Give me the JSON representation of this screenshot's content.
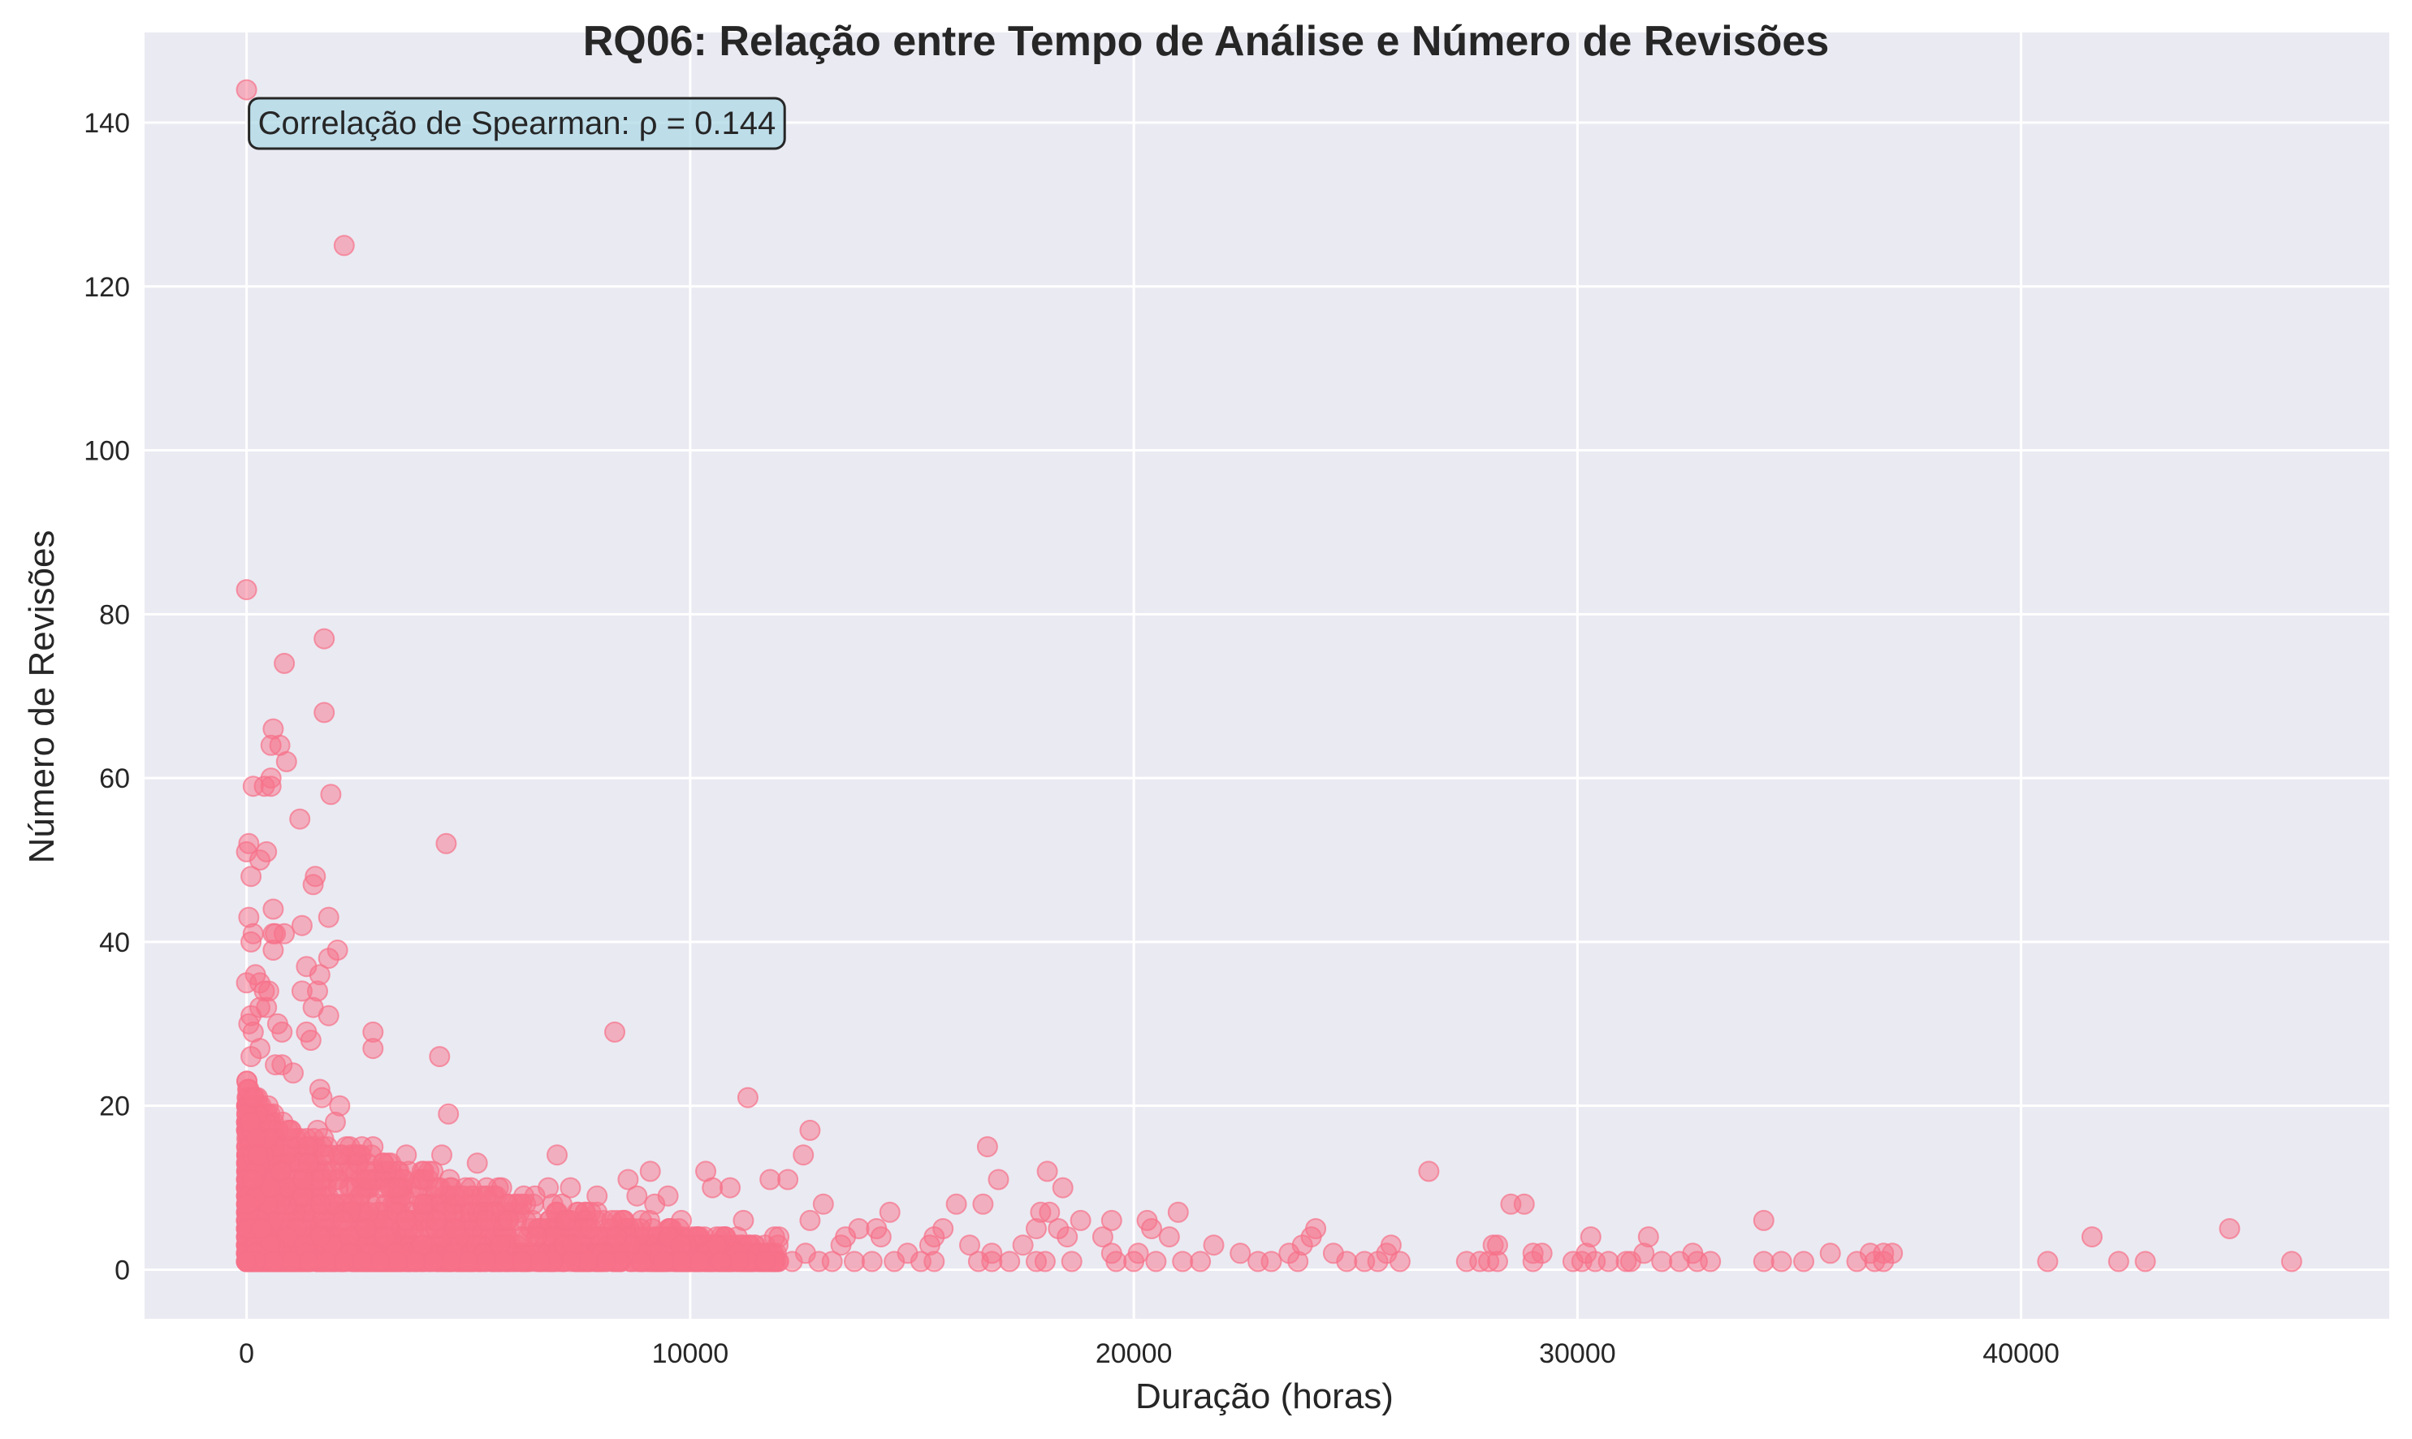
{
  "chart_data": {
    "type": "scatter",
    "title": "RQ06: Relação entre Tempo de Análise e Número de Revisões",
    "xlabel": "Duração (horas)",
    "ylabel": "Número de Revisões",
    "xlim": [
      -2300,
      48300
    ],
    "ylim": [
      -6,
      151
    ],
    "xticks": [
      0,
      10000,
      20000,
      30000,
      40000
    ],
    "xtick_labels": [
      "0",
      "10000",
      "20000",
      "30000",
      "40000"
    ],
    "yticks": [
      0,
      20,
      40,
      60,
      80,
      100,
      120,
      140
    ],
    "ytick_labels": [
      "0",
      "20",
      "40",
      "60",
      "80",
      "100",
      "120",
      "140"
    ],
    "grid": true,
    "annotation": "Correlação de Spearman: ρ = 0.144",
    "colors": {
      "marker": "#f77189",
      "plot_bg": "#eaeaf2",
      "grid": "#ffffff",
      "annotation_bg": "#add8e6",
      "annotation_border": "#262626"
    },
    "points": [
      [
        0,
        144
      ],
      [
        2200,
        125
      ],
      [
        0,
        83
      ],
      [
        1750,
        77
      ],
      [
        850,
        74
      ],
      [
        1750,
        68
      ],
      [
        600,
        66
      ],
      [
        750,
        64
      ],
      [
        550,
        64
      ],
      [
        900,
        62
      ],
      [
        550,
        60
      ],
      [
        150,
        59
      ],
      [
        400,
        59
      ],
      [
        550,
        59
      ],
      [
        1900,
        58
      ],
      [
        1200,
        55
      ],
      [
        4500,
        52
      ],
      [
        50,
        52
      ],
      [
        450,
        51
      ],
      [
        0,
        51
      ],
      [
        300,
        50
      ],
      [
        100,
        48
      ],
      [
        1550,
        48
      ],
      [
        1500,
        47
      ],
      [
        600,
        44
      ],
      [
        50,
        43
      ],
      [
        1850,
        43
      ],
      [
        1250,
        42
      ],
      [
        150,
        41
      ],
      [
        600,
        41
      ],
      [
        850,
        41
      ],
      [
        650,
        41
      ],
      [
        100,
        40
      ],
      [
        600,
        39
      ],
      [
        2050,
        39
      ],
      [
        1850,
        38
      ],
      [
        1350,
        37
      ],
      [
        1650,
        36
      ],
      [
        200,
        36
      ],
      [
        0,
        35
      ],
      [
        300,
        35
      ],
      [
        400,
        34
      ],
      [
        500,
        34
      ],
      [
        1250,
        34
      ],
      [
        1600,
        34
      ],
      [
        300,
        32
      ],
      [
        450,
        32
      ],
      [
        1500,
        32
      ],
      [
        100,
        31
      ],
      [
        1850,
        31
      ],
      [
        700,
        30
      ],
      [
        50,
        30
      ],
      [
        150,
        29
      ],
      [
        800,
        29
      ],
      [
        1350,
        29
      ],
      [
        2850,
        29
      ],
      [
        8300,
        29
      ],
      [
        1450,
        28
      ],
      [
        300,
        27
      ],
      [
        2850,
        27
      ],
      [
        4350,
        26
      ],
      [
        100,
        26
      ],
      [
        650,
        25
      ],
      [
        800,
        25
      ],
      [
        1050,
        24
      ],
      [
        1650,
        22
      ],
      [
        150,
        21
      ],
      [
        1700,
        21
      ],
      [
        11300,
        21
      ],
      [
        2100,
        20
      ],
      [
        4550,
        19
      ],
      [
        2000,
        18
      ],
      [
        12700,
        17
      ],
      [
        1600,
        17
      ],
      [
        2850,
        15
      ],
      [
        16700,
        15
      ],
      [
        2600,
        15
      ],
      [
        4400,
        14
      ],
      [
        7000,
        14
      ],
      [
        3600,
        14
      ],
      [
        12550,
        14
      ],
      [
        3250,
        13
      ],
      [
        5200,
        13
      ],
      [
        1400,
        13
      ],
      [
        9100,
        12
      ],
      [
        10350,
        12
      ],
      [
        26650,
        12
      ],
      [
        18050,
        12
      ],
      [
        4200,
        12
      ],
      [
        2700,
        12
      ],
      [
        2700,
        11
      ],
      [
        8600,
        11
      ],
      [
        11800,
        11
      ],
      [
        12200,
        11
      ],
      [
        16950,
        11
      ],
      [
        3400,
        10
      ],
      [
        5750,
        10
      ],
      [
        6800,
        10
      ],
      [
        7300,
        10
      ],
      [
        10500,
        10
      ],
      [
        10900,
        10
      ],
      [
        18400,
        10
      ],
      [
        6500,
        9
      ],
      [
        7900,
        9
      ],
      [
        8800,
        9
      ],
      [
        4700,
        9
      ],
      [
        4900,
        9
      ],
      [
        9500,
        9
      ],
      [
        6200,
        8
      ],
      [
        9200,
        8
      ],
      [
        13000,
        8
      ],
      [
        16000,
        8
      ],
      [
        16600,
        8
      ],
      [
        28500,
        8
      ],
      [
        28800,
        8
      ],
      [
        14500,
        7
      ],
      [
        18100,
        7
      ],
      [
        21000,
        7
      ],
      [
        17900,
        7
      ],
      [
        19500,
        6
      ],
      [
        20300,
        6
      ],
      [
        34200,
        6
      ],
      [
        11200,
        6
      ],
      [
        12700,
        6
      ],
      [
        18800,
        6
      ],
      [
        9800,
        6
      ],
      [
        3600,
        6
      ],
      [
        5400,
        6
      ],
      [
        7200,
        6
      ],
      [
        44700,
        5
      ],
      [
        24100,
        5
      ],
      [
        20400,
        5
      ],
      [
        15700,
        5
      ],
      [
        14200,
        5
      ],
      [
        17800,
        5
      ],
      [
        18300,
        5
      ],
      [
        13800,
        5
      ],
      [
        41600,
        4
      ],
      [
        31600,
        4
      ],
      [
        30300,
        4
      ],
      [
        24000,
        4
      ],
      [
        20800,
        4
      ],
      [
        19300,
        4
      ],
      [
        15500,
        4
      ],
      [
        13500,
        4
      ],
      [
        11900,
        4
      ],
      [
        18500,
        4
      ],
      [
        14300,
        4
      ],
      [
        12000,
        4
      ],
      [
        16300,
        3
      ],
      [
        17500,
        3
      ],
      [
        21800,
        3
      ],
      [
        23800,
        3
      ],
      [
        25800,
        3
      ],
      [
        28100,
        3
      ],
      [
        28200,
        3
      ],
      [
        15400,
        3
      ],
      [
        10600,
        3
      ],
      [
        13400,
        3
      ],
      [
        29000,
        2
      ],
      [
        29200,
        2
      ],
      [
        30200,
        2
      ],
      [
        31500,
        2
      ],
      [
        32600,
        2
      ],
      [
        35700,
        2
      ],
      [
        36600,
        2
      ],
      [
        36900,
        2
      ],
      [
        37100,
        2
      ],
      [
        22400,
        2
      ],
      [
        23500,
        2
      ],
      [
        24500,
        2
      ],
      [
        25700,
        2
      ],
      [
        19500,
        2
      ],
      [
        20100,
        2
      ],
      [
        16800,
        2
      ],
      [
        14900,
        2
      ],
      [
        12600,
        2
      ],
      [
        27500,
        1
      ],
      [
        27800,
        1
      ],
      [
        28000,
        1
      ],
      [
        28200,
        1
      ],
      [
        29000,
        1
      ],
      [
        29900,
        1
      ],
      [
        30100,
        1
      ],
      [
        30400,
        1
      ],
      [
        30700,
        1
      ],
      [
        31100,
        1
      ],
      [
        31200,
        1
      ],
      [
        31900,
        1
      ],
      [
        32300,
        1
      ],
      [
        32700,
        1
      ],
      [
        33000,
        1
      ],
      [
        34200,
        1
      ],
      [
        34600,
        1
      ],
      [
        35100,
        1
      ],
      [
        36300,
        1
      ],
      [
        36700,
        1
      ],
      [
        36900,
        1
      ],
      [
        40600,
        1
      ],
      [
        42200,
        1
      ],
      [
        42800,
        1
      ],
      [
        46100,
        1
      ],
      [
        22800,
        1
      ],
      [
        23100,
        1
      ],
      [
        23700,
        1
      ],
      [
        24800,
        1
      ],
      [
        25200,
        1
      ],
      [
        25500,
        1
      ],
      [
        26000,
        1
      ],
      [
        21100,
        1
      ],
      [
        21500,
        1
      ],
      [
        20500,
        1
      ],
      [
        20000,
        1
      ],
      [
        19600,
        1
      ],
      [
        18600,
        1
      ],
      [
        18000,
        1
      ],
      [
        17800,
        1
      ],
      [
        17200,
        1
      ],
      [
        16500,
        1
      ],
      [
        16800,
        1
      ],
      [
        15200,
        1
      ],
      [
        15500,
        1
      ],
      [
        14600,
        1
      ],
      [
        14100,
        1
      ],
      [
        13700,
        1
      ],
      [
        13200,
        1
      ],
      [
        12900,
        1
      ],
      [
        12300,
        1
      ],
      [
        11700,
        1
      ],
      [
        11100,
        1
      ],
      [
        10700,
        1
      ],
      [
        10200,
        1
      ],
      [
        9800,
        1
      ],
      [
        9400,
        1
      ],
      [
        8900,
        1
      ],
      [
        8400,
        1
      ],
      [
        8100,
        1
      ],
      [
        7700,
        1
      ],
      [
        7300,
        1
      ],
      [
        6900,
        1
      ],
      [
        6600,
        1
      ],
      [
        6200,
        1
      ],
      [
        5800,
        1
      ],
      [
        5400,
        1
      ],
      [
        5000,
        1
      ],
      [
        4600,
        1
      ],
      [
        4200,
        1
      ],
      [
        3800,
        1
      ],
      [
        3400,
        1
      ],
      [
        3000,
        1
      ],
      [
        2600,
        1
      ],
      [
        2200,
        1
      ],
      [
        1800,
        1
      ],
      [
        1400,
        1
      ],
      [
        1000,
        1
      ],
      [
        600,
        1
      ],
      [
        200,
        1
      ],
      [
        0,
        1
      ]
    ],
    "dense_cluster": {
      "x": [
        0,
        12000
      ],
      "y_max_at_start": 24,
      "y_max_at_end": 3,
      "count": 2200
    }
  }
}
